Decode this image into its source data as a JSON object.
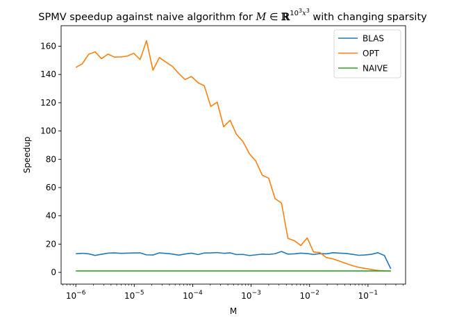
{
  "chart_data": {
    "type": "line",
    "title": {
      "prefix": "SPMV speedup against naive algorithm for ",
      "var": "M",
      "in": " ∈ ",
      "set": "ℝ",
      "exp": "10",
      "exp_pow1": "3",
      "exp_x": "x",
      "exp_pow2": "3",
      "suffix": " with changing sparsity"
    },
    "xlabel": "M",
    "ylabel": "Speedup",
    "xscale": "log",
    "xlim": [
      5.6e-07,
      0.44
    ],
    "ylim": [
      -8.3,
      174.5
    ],
    "grid": false,
    "legend_position": "upper-right",
    "x_ticks": [
      {
        "base": "10",
        "exp": "−6"
      },
      {
        "base": "10",
        "exp": "−5"
      },
      {
        "base": "10",
        "exp": "−4"
      },
      {
        "base": "10",
        "exp": "−3"
      },
      {
        "base": "10",
        "exp": "−2"
      },
      {
        "base": "10",
        "exp": "−1"
      }
    ],
    "y_ticks": [
      "0",
      "20",
      "40",
      "60",
      "80",
      "100",
      "120",
      "140",
      "160"
    ],
    "x": [
      1e-06,
      1.29e-06,
      1.66e-06,
      2.14e-06,
      2.75e-06,
      3.55e-06,
      4.57e-06,
      5.89e-06,
      7.59e-06,
      9.77e-06,
      1.26e-05,
      1.62e-05,
      2.09e-05,
      2.69e-05,
      3.47e-05,
      4.47e-05,
      5.75e-05,
      7.41e-05,
      9.55e-05,
      0.000123,
      0.000158,
      0.000204,
      0.000263,
      0.000339,
      0.000437,
      0.000562,
      0.000724,
      0.000933,
      0.0012,
      0.00155,
      0.002,
      0.00257,
      0.00331,
      0.00427,
      0.0055,
      0.00708,
      0.00912,
      0.0117,
      0.0151,
      0.0195,
      0.0251,
      0.0324,
      0.0417,
      0.0537,
      0.0692,
      0.0891,
      0.115,
      0.148,
      0.191,
      0.246
    ],
    "series": [
      {
        "name": "BLAS",
        "color": "#1f77b4",
        "values": [
          13.2,
          13.5,
          13.1,
          12.0,
          12.8,
          13.6,
          13.8,
          13.5,
          13.6,
          13.7,
          13.8,
          12.4,
          12.3,
          13.8,
          13.4,
          13.0,
          12.2,
          13.0,
          13.6,
          12.6,
          13.7,
          13.8,
          14.0,
          13.5,
          13.8,
          12.6,
          12.7,
          11.9,
          12.4,
          12.9,
          12.7,
          13.2,
          14.8,
          12.9,
          13.1,
          13.6,
          13.3,
          12.7,
          13.3,
          13.1,
          13.9,
          13.6,
          13.4,
          12.8,
          12.1,
          12.3,
          12.8,
          13.9,
          11.9,
          2.5
        ]
      },
      {
        "name": "OPT",
        "color": "#ff7f0e",
        "values": [
          145.0,
          147.5,
          154.3,
          156.0,
          151.2,
          154.4,
          152.3,
          152.4,
          153.0,
          155.0,
          150.6,
          163.9,
          143.0,
          152.0,
          148.8,
          145.8,
          140.8,
          136.4,
          138.6,
          134.2,
          132.0,
          117.4,
          120.4,
          103.0,
          107.6,
          97.6,
          92.6,
          84.0,
          78.8,
          68.8,
          66.6,
          52.2,
          49.0,
          24.0,
          22.4,
          19.0,
          24.4,
          14.4,
          14.0,
          10.4,
          9.6,
          8.0,
          6.4,
          4.8,
          3.6,
          2.8,
          2.0,
          1.4,
          1.0,
          0.8
        ]
      },
      {
        "name": "NAIVE",
        "color": "#2ca02c",
        "values": [
          1,
          1,
          1,
          1,
          1,
          1,
          1,
          1,
          1,
          1,
          1,
          1,
          1,
          1,
          1,
          1,
          1,
          1,
          1,
          1,
          1,
          1,
          1,
          1,
          1,
          1,
          1,
          1,
          1,
          1,
          1,
          1,
          1,
          1,
          1,
          1,
          1,
          1,
          1,
          1,
          1,
          1,
          1,
          1,
          1,
          1,
          1,
          1,
          1,
          1
        ]
      }
    ]
  }
}
